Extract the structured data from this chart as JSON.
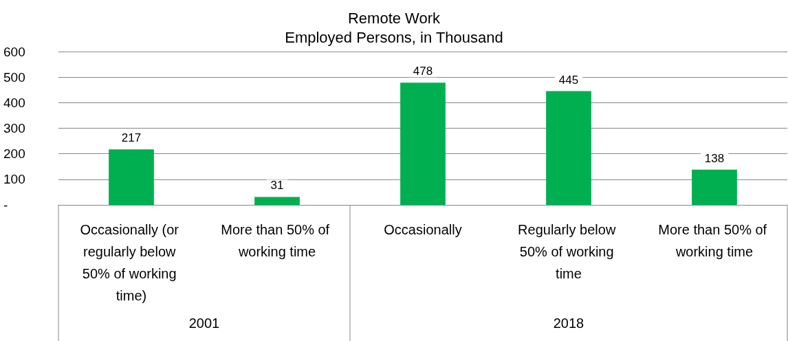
{
  "chart_data": {
    "type": "bar",
    "title": "Remote Work",
    "subtitle": "Employed Persons, in Thousand",
    "categories": [
      "Occasionally (or regularly below 50% of working time)",
      "More than 50% of working time",
      "Occasionally",
      "Regularly below 50% of working time",
      "More than 50% of working time"
    ],
    "values": [
      217,
      31,
      478,
      445,
      138
    ],
    "color": "#00b050",
    "ylim": [
      0,
      600
    ],
    "yticks": [
      {
        "value": 0,
        "label": "-"
      },
      100,
      200,
      300,
      400,
      500,
      600
    ],
    "grid": "y",
    "data_labels": true,
    "annotations": [
      "2001",
      "2018"
    ]
  }
}
